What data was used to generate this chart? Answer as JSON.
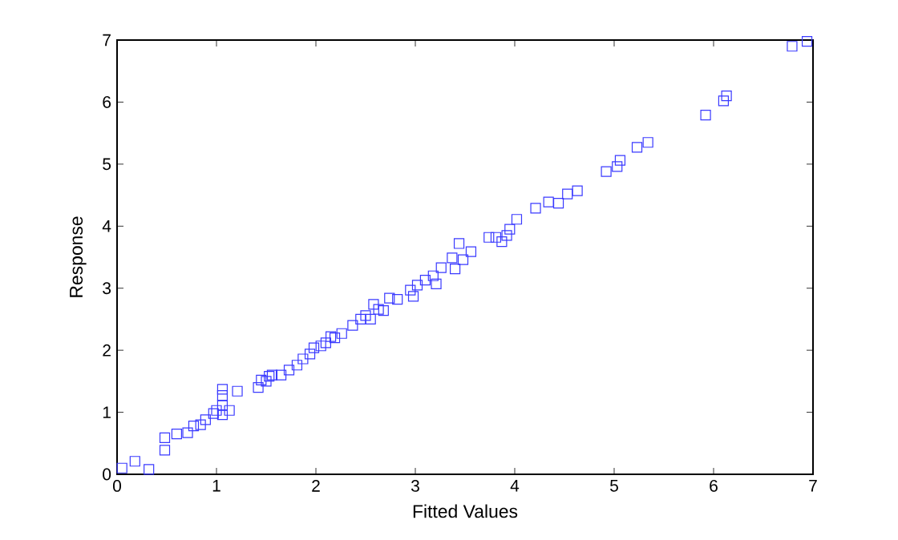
{
  "chart_data": {
    "type": "scatter",
    "xlabel": "Fitted Values",
    "ylabel": "Response",
    "marker": "square",
    "color": "#3a3aff",
    "grid": false,
    "xlim": [
      0,
      7
    ],
    "ylim": [
      0,
      7
    ],
    "xticks": [
      0,
      1,
      2,
      3,
      4,
      5,
      6,
      7
    ],
    "yticks": [
      0,
      1,
      2,
      3,
      4,
      5,
      6,
      7
    ],
    "x": [
      0.05,
      0.18,
      0.32,
      0.48,
      0.48,
      0.6,
      0.71,
      0.77,
      0.84,
      0.89,
      0.97,
      1.0,
      1.06,
      1.06,
      1.06,
      1.06,
      1.13,
      1.21,
      1.42,
      1.45,
      1.5,
      1.53,
      1.56,
      1.65,
      1.73,
      1.81,
      1.87,
      1.94,
      1.98,
      2.05,
      2.1,
      2.15,
      2.19,
      2.26,
      2.37,
      2.45,
      2.5,
      2.55,
      2.58,
      2.63,
      2.68,
      2.74,
      2.82,
      2.95,
      2.98,
      3.02,
      3.1,
      3.18,
      3.21,
      3.26,
      3.37,
      3.4,
      3.44,
      3.48,
      3.56,
      3.74,
      3.81,
      3.87,
      3.92,
      3.95,
      4.02,
      4.21,
      4.34,
      4.44,
      4.53,
      4.63,
      4.92,
      5.06,
      5.03,
      5.23,
      5.34,
      5.92,
      6.1,
      6.13,
      6.79,
      6.94
    ],
    "values": [
      0.1,
      0.21,
      0.08,
      0.39,
      0.59,
      0.65,
      0.67,
      0.78,
      0.8,
      0.88,
      0.98,
      1.03,
      1.11,
      1.27,
      1.37,
      0.96,
      1.03,
      1.34,
      1.4,
      1.52,
      1.5,
      1.58,
      1.6,
      1.6,
      1.68,
      1.76,
      1.86,
      1.94,
      2.04,
      2.07,
      2.12,
      2.22,
      2.2,
      2.27,
      2.4,
      2.5,
      2.56,
      2.5,
      2.74,
      2.66,
      2.64,
      2.84,
      2.82,
      2.97,
      2.87,
      3.05,
      3.13,
      3.2,
      3.07,
      3.33,
      3.49,
      3.31,
      3.72,
      3.46,
      3.59,
      3.82,
      3.82,
      3.75,
      3.85,
      3.95,
      4.11,
      4.29,
      4.39,
      4.37,
      4.52,
      4.57,
      4.88,
      5.06,
      4.96,
      5.27,
      5.35,
      5.79,
      6.02,
      6.1,
      6.9,
      6.98
    ]
  }
}
